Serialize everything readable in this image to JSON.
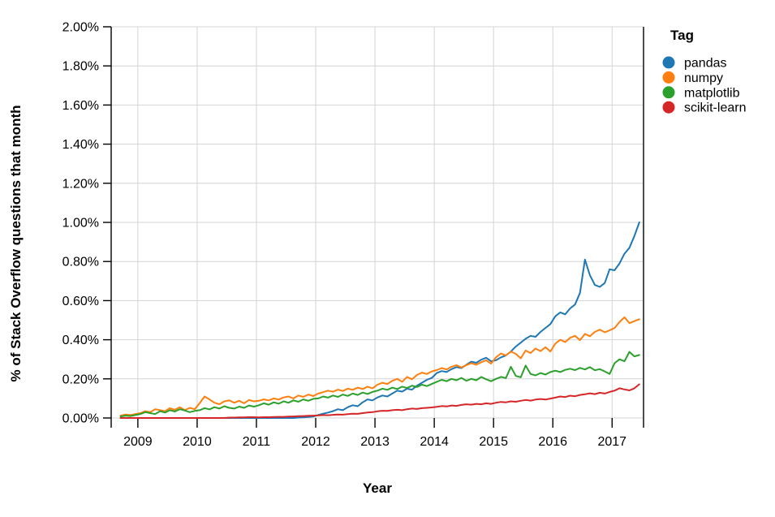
{
  "chart_data": {
    "type": "line",
    "title": "",
    "xlabel": "Year",
    "ylabel": "% of Stack Overflow questions that month",
    "legend_title": "Tag",
    "legend_position": "right",
    "grid": true,
    "x_range": [
      2008.55,
      2017.53
    ],
    "ylim": [
      0,
      2.0
    ],
    "y_tick_step": 0.2,
    "y_tick_labels": [
      "0.00%",
      "0.20%",
      "0.40%",
      "0.60%",
      "0.80%",
      "1.00%",
      "1.20%",
      "1.40%",
      "1.60%",
      "1.80%",
      "2.00%"
    ],
    "x_ticks": [
      2009,
      2010,
      2011,
      2012,
      2013,
      2014,
      2015,
      2016,
      2017
    ],
    "months": [
      "2008-09",
      "2008-10",
      "2008-11",
      "2008-12",
      "2009-01",
      "2009-02",
      "2009-03",
      "2009-04",
      "2009-05",
      "2009-06",
      "2009-07",
      "2009-08",
      "2009-09",
      "2009-10",
      "2009-11",
      "2009-12",
      "2010-01",
      "2010-02",
      "2010-03",
      "2010-04",
      "2010-05",
      "2010-06",
      "2010-07",
      "2010-08",
      "2010-09",
      "2010-10",
      "2010-11",
      "2010-12",
      "2011-01",
      "2011-02",
      "2011-03",
      "2011-04",
      "2011-05",
      "2011-06",
      "2011-07",
      "2011-08",
      "2011-09",
      "2011-10",
      "2011-11",
      "2011-12",
      "2012-01",
      "2012-02",
      "2012-03",
      "2012-04",
      "2012-05",
      "2012-06",
      "2012-07",
      "2012-08",
      "2012-09",
      "2012-10",
      "2012-11",
      "2012-12",
      "2013-01",
      "2013-02",
      "2013-03",
      "2013-04",
      "2013-05",
      "2013-06",
      "2013-07",
      "2013-08",
      "2013-09",
      "2013-10",
      "2013-11",
      "2013-12",
      "2014-01",
      "2014-02",
      "2014-03",
      "2014-04",
      "2014-05",
      "2014-06",
      "2014-07",
      "2014-08",
      "2014-09",
      "2014-10",
      "2014-11",
      "2014-12",
      "2015-01",
      "2015-02",
      "2015-03",
      "2015-04",
      "2015-05",
      "2015-06",
      "2015-07",
      "2015-08",
      "2015-09",
      "2015-10",
      "2015-11",
      "2015-12",
      "2016-01",
      "2016-02",
      "2016-03",
      "2016-04",
      "2016-05",
      "2016-06",
      "2016-07",
      "2016-08",
      "2016-09",
      "2016-10",
      "2016-11",
      "2016-12",
      "2017-01",
      "2017-02",
      "2017-03",
      "2017-04",
      "2017-05",
      "2017-06"
    ],
    "series": [
      {
        "name": "pandas",
        "color": "#1f77b4",
        "values": [
          0,
          0,
          0,
          0,
          0,
          0,
          0,
          0,
          0,
          0,
          0,
          0,
          0,
          0,
          0,
          0,
          0,
          0,
          0,
          0,
          0,
          0,
          0,
          0,
          0,
          0,
          0,
          0,
          0,
          0,
          0,
          0,
          0,
          0,
          0,
          0,
          0.002,
          0.003,
          0.005,
          0.008,
          0.015,
          0.022,
          0.028,
          0.035,
          0.045,
          0.04,
          0.055,
          0.065,
          0.06,
          0.08,
          0.095,
          0.09,
          0.105,
          0.115,
          0.11,
          0.125,
          0.14,
          0.135,
          0.15,
          0.145,
          0.165,
          0.18,
          0.195,
          0.205,
          0.23,
          0.24,
          0.235,
          0.25,
          0.26,
          0.255,
          0.272,
          0.288,
          0.282,
          0.298,
          0.308,
          0.29,
          0.295,
          0.31,
          0.32,
          0.34,
          0.365,
          0.385,
          0.405,
          0.42,
          0.415,
          0.44,
          0.46,
          0.48,
          0.52,
          0.54,
          0.53,
          0.56,
          0.58,
          0.64,
          0.81,
          0.73,
          0.68,
          0.67,
          0.69,
          0.76,
          0.755,
          0.79,
          0.84,
          0.87,
          0.93,
          1.0
        ]
      },
      {
        "name": "numpy",
        "color": "#ff7f0e",
        "values": [
          0.012,
          0.018,
          0.015,
          0.02,
          0.025,
          0.035,
          0.03,
          0.045,
          0.04,
          0.035,
          0.05,
          0.042,
          0.055,
          0.04,
          0.052,
          0.045,
          0.075,
          0.11,
          0.095,
          0.078,
          0.07,
          0.085,
          0.09,
          0.078,
          0.088,
          0.075,
          0.092,
          0.085,
          0.088,
          0.095,
          0.09,
          0.1,
          0.094,
          0.105,
          0.11,
          0.1,
          0.115,
          0.108,
          0.12,
          0.112,
          0.125,
          0.132,
          0.14,
          0.134,
          0.145,
          0.138,
          0.15,
          0.144,
          0.155,
          0.148,
          0.16,
          0.152,
          0.17,
          0.18,
          0.174,
          0.19,
          0.2,
          0.185,
          0.21,
          0.198,
          0.22,
          0.232,
          0.225,
          0.238,
          0.245,
          0.255,
          0.248,
          0.262,
          0.27,
          0.258,
          0.27,
          0.28,
          0.272,
          0.285,
          0.295,
          0.278,
          0.31,
          0.33,
          0.32,
          0.34,
          0.328,
          0.305,
          0.345,
          0.332,
          0.355,
          0.342,
          0.362,
          0.34,
          0.38,
          0.4,
          0.388,
          0.41,
          0.42,
          0.398,
          0.43,
          0.418,
          0.44,
          0.452,
          0.438,
          0.448,
          0.46,
          0.49,
          0.515,
          0.485,
          0.495,
          0.505
        ]
      },
      {
        "name": "matplotlib",
        "color": "#2ca02c",
        "values": [
          0.008,
          0.012,
          0.01,
          0.015,
          0.02,
          0.03,
          0.025,
          0.02,
          0.035,
          0.028,
          0.04,
          0.033,
          0.045,
          0.038,
          0.03,
          0.036,
          0.04,
          0.05,
          0.044,
          0.055,
          0.048,
          0.06,
          0.052,
          0.048,
          0.058,
          0.052,
          0.064,
          0.058,
          0.065,
          0.075,
          0.068,
          0.08,
          0.073,
          0.085,
          0.078,
          0.09,
          0.083,
          0.095,
          0.088,
          0.098,
          0.1,
          0.11,
          0.104,
          0.115,
          0.108,
          0.12,
          0.113,
          0.125,
          0.118,
          0.13,
          0.123,
          0.133,
          0.14,
          0.15,
          0.144,
          0.155,
          0.148,
          0.16,
          0.153,
          0.165,
          0.158,
          0.17,
          0.163,
          0.174,
          0.185,
          0.195,
          0.188,
          0.2,
          0.193,
          0.205,
          0.19,
          0.2,
          0.193,
          0.21,
          0.198,
          0.188,
          0.2,
          0.21,
          0.204,
          0.262,
          0.215,
          0.208,
          0.268,
          0.225,
          0.218,
          0.23,
          0.222,
          0.235,
          0.242,
          0.235,
          0.246,
          0.252,
          0.245,
          0.256,
          0.248,
          0.26,
          0.244,
          0.25,
          0.238,
          0.225,
          0.28,
          0.3,
          0.29,
          0.338,
          0.315,
          0.322
        ]
      },
      {
        "name": "scikit-learn",
        "color": "#d62728",
        "values": [
          0,
          0,
          0,
          0,
          0,
          0,
          0,
          0,
          0,
          0,
          0,
          0,
          0,
          0,
          0,
          0,
          0,
          0,
          0,
          0,
          0,
          0,
          0.002,
          0.002,
          0.003,
          0.003,
          0.004,
          0.004,
          0.003,
          0.004,
          0.004,
          0.005,
          0.006,
          0.006,
          0.007,
          0.008,
          0.009,
          0.01,
          0.011,
          0.012,
          0.013,
          0.015,
          0.014,
          0.016,
          0.018,
          0.017,
          0.02,
          0.022,
          0.021,
          0.025,
          0.028,
          0.03,
          0.034,
          0.037,
          0.036,
          0.04,
          0.042,
          0.04,
          0.045,
          0.048,
          0.046,
          0.05,
          0.052,
          0.054,
          0.057,
          0.061,
          0.059,
          0.064,
          0.062,
          0.067,
          0.07,
          0.068,
          0.072,
          0.07,
          0.075,
          0.072,
          0.078,
          0.082,
          0.08,
          0.085,
          0.083,
          0.088,
          0.092,
          0.089,
          0.094,
          0.097,
          0.094,
          0.099,
          0.104,
          0.11,
          0.107,
          0.114,
          0.111,
          0.118,
          0.121,
          0.126,
          0.122,
          0.129,
          0.125,
          0.133,
          0.14,
          0.152,
          0.146,
          0.141,
          0.152,
          0.172
        ]
      }
    ]
  }
}
